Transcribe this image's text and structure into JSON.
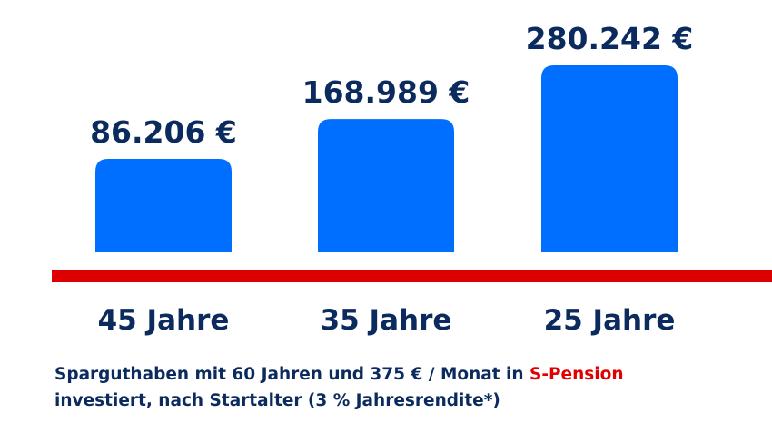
{
  "chart_data": {
    "type": "bar",
    "categories": [
      "45 Jahre",
      "35 Jahre",
      "25 Jahre"
    ],
    "values": [
      86206,
      168989,
      280242
    ],
    "value_labels": [
      "86.206 €",
      "168.989 €",
      "280.242 €"
    ],
    "title": "",
    "xlabel": "",
    "ylabel": "",
    "grid": false,
    "colors": {
      "bar": "#006eff",
      "baseline": "#dd0000",
      "text": "#0b2b5e"
    }
  },
  "caption": {
    "line1_prefix": "Sparguthaben mit 60 Jahren und 375 € / Monat in ",
    "line1_highlight": "S-Pension",
    "line2": "investiert, nach Startalter (3 % Jahresrendite*)"
  }
}
